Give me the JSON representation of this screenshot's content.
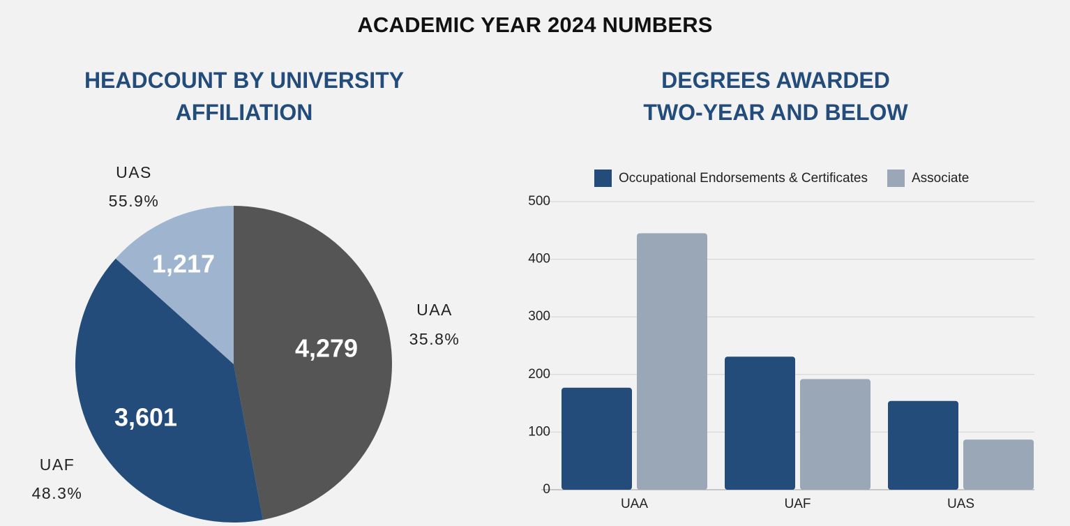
{
  "page": {
    "title": "ACADEMIC YEAR 2024 NUMBERS"
  },
  "colors": {
    "dark_blue": "#234c7a",
    "light_blue": "#9fb4cf",
    "dark_gray": "#555555",
    "gray_blue": "#9aa7b7",
    "gridline": "#d2d2d2"
  },
  "chart_data": [
    {
      "type": "pie",
      "title_lines": [
        "HEADCOUNT BY UNIVERSITY",
        "AFFILIATION"
      ],
      "slices": [
        {
          "label": "UAA",
          "value": 4279,
          "value_label": "4,279",
          "percent_label": "35.8%",
          "color": "#555555"
        },
        {
          "label": "UAF",
          "value": 3601,
          "value_label": "3,601",
          "percent_label": "48.3%",
          "color": "#234c7a"
        },
        {
          "label": "UAS",
          "value": 1217,
          "value_label": "1,217",
          "percent_label": "55.9%",
          "color": "#9fb4cf"
        }
      ]
    },
    {
      "type": "bar",
      "title_lines": [
        "DEGREES AWARDED",
        "TWO-YEAR AND BELOW"
      ],
      "categories": [
        "UAA",
        "UAF",
        "UAS"
      ],
      "series": [
        {
          "name": "Occupational Endorsements & Certificates",
          "values": [
            177,
            231,
            154
          ],
          "color": "#234c7a"
        },
        {
          "name": "Associate",
          "values": [
            445,
            192,
            87
          ],
          "color": "#9aa7b7"
        }
      ],
      "ylim": [
        0,
        500
      ],
      "yticks": [
        0,
        100,
        200,
        300,
        400,
        500
      ],
      "grid": true,
      "legend_position": "top"
    }
  ]
}
